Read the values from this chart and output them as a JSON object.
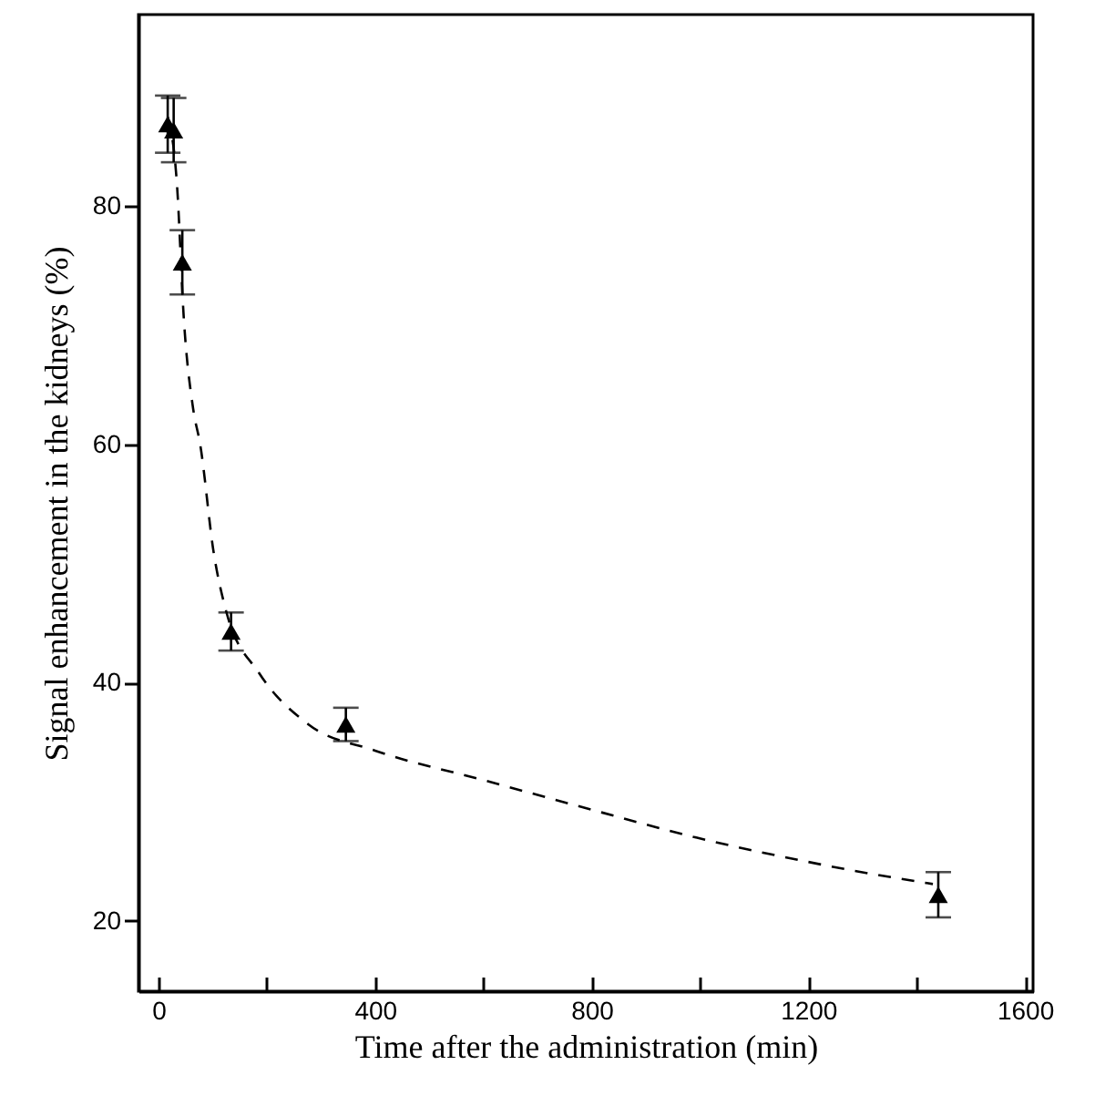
{
  "chart_data": {
    "type": "scatter",
    "xlabel": "Time after the administration (min)",
    "ylabel": "Signal enhancement in the kidneys (%)",
    "xlim": [
      -37,
      1615
    ],
    "ylim": [
      14.1,
      96.1
    ],
    "xticks": [
      0,
      {
        "value": 200,
        "label": null
      },
      400,
      {
        "value": 600,
        "label": null
      },
      800,
      {
        "value": 1000,
        "label": null
      },
      1200,
      {
        "value": 1400,
        "label": null
      },
      1600
    ],
    "yticks": [
      20,
      40,
      60,
      80
    ],
    "grid": false,
    "series": [
      {
        "type": "scatter",
        "color": "#000000",
        "marker": "triangle",
        "x": [
          17,
          28,
          44,
          134,
          346,
          1440
        ],
        "values": [
          86.9,
          86.4,
          75.3,
          44.3,
          36.5,
          22.2
        ],
        "errors": [
          2.4,
          2.7,
          2.7,
          1.6,
          1.4,
          1.9
        ]
      },
      {
        "type": "line",
        "color": "#000000",
        "marker": "none",
        "line_style": "dashed",
        "x": [
          17,
          34,
          47,
          64,
          77,
          102,
          125,
          186,
          277,
          400,
          602,
          803,
          993,
          1195,
          1274,
          1430
        ],
        "values": [
          87.5,
          81.9,
          70.4,
          63.0,
          60.0,
          50.9,
          46.0,
          40.8,
          36.5,
          34.3,
          31.8,
          29.3,
          27.0,
          25.0,
          24.3,
          23.1
        ]
      }
    ]
  }
}
